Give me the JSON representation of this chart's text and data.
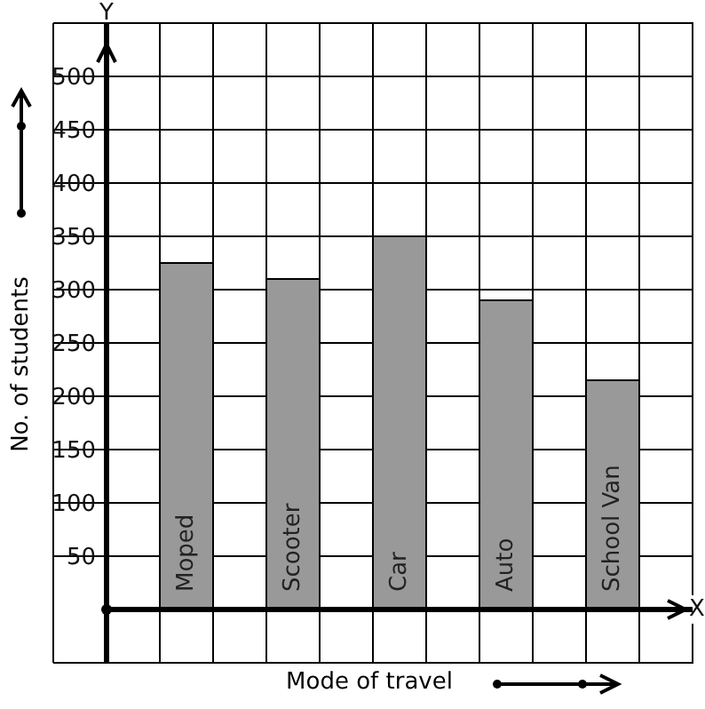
{
  "chart_data": {
    "type": "bar",
    "xlabel": "Mode of travel",
    "ylabel": "No. of students",
    "categories": [
      "Moped",
      "Scooter",
      "Car",
      "Auto",
      "School Van"
    ],
    "values": [
      325,
      310,
      350,
      290,
      215
    ],
    "color": "#999999",
    "ylim": [
      -50,
      550
    ],
    "yticks": [
      50,
      100,
      150,
      200,
      250,
      300,
      350,
      400,
      450,
      500
    ],
    "grid": true,
    "annotations": [
      "Y",
      "X"
    ]
  }
}
